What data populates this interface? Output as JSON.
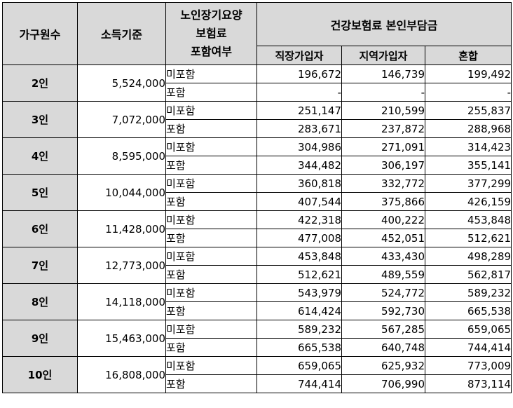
{
  "header": {
    "household": "가구원수",
    "income": "소득기준",
    "ltc_line1": "노인장기요양",
    "ltc_line2": "보험료",
    "ltc_line3": "포함여부",
    "premium_group": "건강보험료 본인부담금",
    "employee": "직장가입자",
    "regional": "지역가입자",
    "mixed": "혼합"
  },
  "rows": [
    {
      "size": "2인",
      "income": "5,524,000",
      "a": {
        "label": "미포함",
        "employee": "196,672",
        "regional": "146,739",
        "mixed": "199,492"
      },
      "b": {
        "label": "포함",
        "employee": "-",
        "regional": "-",
        "mixed": "-"
      }
    },
    {
      "size": "3인",
      "income": "7,072,000",
      "a": {
        "label": "미포함",
        "employee": "251,147",
        "regional": "210,599",
        "mixed": "255,837"
      },
      "b": {
        "label": "포함",
        "employee": "283,671",
        "regional": "237,872",
        "mixed": "288,968"
      }
    },
    {
      "size": "4인",
      "income": "8,595,000",
      "a": {
        "label": "미포함",
        "employee": "304,986",
        "regional": "271,091",
        "mixed": "314,423"
      },
      "b": {
        "label": "포함",
        "employee": "344,482",
        "regional": "306,197",
        "mixed": "355,141"
      }
    },
    {
      "size": "5인",
      "income": "10,044,000",
      "a": {
        "label": "미포함",
        "employee": "360,818",
        "regional": "332,772",
        "mixed": "377,299"
      },
      "b": {
        "label": "포함",
        "employee": "407,544",
        "regional": "375,866",
        "mixed": "426,159"
      }
    },
    {
      "size": "6인",
      "income": "11,428,000",
      "a": {
        "label": "미포함",
        "employee": "422,318",
        "regional": "400,222",
        "mixed": "453,848"
      },
      "b": {
        "label": "포함",
        "employee": "477,008",
        "regional": "452,051",
        "mixed": "512,621"
      }
    },
    {
      "size": "7인",
      "income": "12,773,000",
      "a": {
        "label": "미포함",
        "employee": "453,848",
        "regional": "433,430",
        "mixed": "498,289"
      },
      "b": {
        "label": "포함",
        "employee": "512,621",
        "regional": "489,559",
        "mixed": "562,817"
      }
    },
    {
      "size": "8인",
      "income": "14,118,000",
      "a": {
        "label": "미포함",
        "employee": "543,979",
        "regional": "524,772",
        "mixed": "589,232"
      },
      "b": {
        "label": "포함",
        "employee": "614,424",
        "regional": "592,730",
        "mixed": "665,538"
      }
    },
    {
      "size": "9인",
      "income": "15,463,000",
      "a": {
        "label": "미포함",
        "employee": "589,232",
        "regional": "567,285",
        "mixed": "659,065"
      },
      "b": {
        "label": "포함",
        "employee": "665,538",
        "regional": "640,748",
        "mixed": "744,414"
      }
    },
    {
      "size": "10인",
      "income": "16,808,000",
      "a": {
        "label": "미포함",
        "employee": "659,065",
        "regional": "625,932",
        "mixed": "773,009"
      },
      "b": {
        "label": "포함",
        "employee": "744,414",
        "regional": "706,990",
        "mixed": "873,114"
      }
    }
  ]
}
